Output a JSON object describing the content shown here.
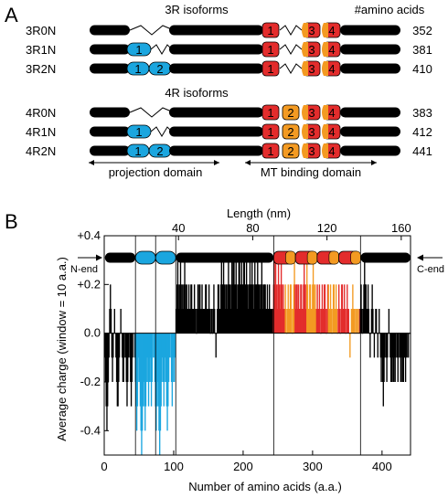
{
  "panel_a": {
    "label": "A",
    "header_3r": "3R isoforms",
    "header_4r": "4R isoforms",
    "aa_header": "#amino acids",
    "isoforms": [
      {
        "name": "3R0N",
        "aa": "352",
        "n_inserts": [
          "",
          ""
        ],
        "repeats": [
          "1",
          "",
          "3",
          "4"
        ]
      },
      {
        "name": "3R1N",
        "aa": "381",
        "n_inserts": [
          "1",
          ""
        ],
        "repeats": [
          "1",
          "",
          "3",
          "4"
        ]
      },
      {
        "name": "3R2N",
        "aa": "410",
        "n_inserts": [
          "1",
          "2"
        ],
        "repeats": [
          "1",
          "",
          "3",
          "4"
        ]
      },
      {
        "name": "4R0N",
        "aa": "383",
        "n_inserts": [
          "",
          ""
        ],
        "repeats": [
          "1",
          "2",
          "3",
          "4"
        ]
      },
      {
        "name": "4R1N",
        "aa": "412",
        "n_inserts": [
          "1",
          ""
        ],
        "repeats": [
          "1",
          "2",
          "3",
          "4"
        ]
      },
      {
        "name": "4R2N",
        "aa": "441",
        "n_inserts": [
          "1",
          "2"
        ],
        "repeats": [
          "1",
          "2",
          "3",
          "4"
        ]
      }
    ],
    "domain_projection": "projection domain",
    "domain_mt": "MT binding domain"
  },
  "panel_b": {
    "label": "B",
    "n_end": "N-end",
    "c_end": "C-end"
  },
  "colors": {
    "n_insert": "#1ba6df",
    "repeat_red": "#e32c2c",
    "repeat_orange": "#f39a22",
    "body": "#000000"
  },
  "chart_data": {
    "type": "bar",
    "xlabel": "Number of amino acids (a.a.)",
    "ylabel": "Average charge (window = 10 a.a.)",
    "x2label": "Length (nm)",
    "xlim": [
      0,
      441
    ],
    "ylim": [
      -0.5,
      0.4
    ],
    "xticks": [
      "0",
      "100",
      "200",
      "300",
      "400"
    ],
    "yticks": [
      "+0.4",
      "+0.2",
      "0.0",
      "-0.2",
      "-0.4"
    ],
    "x2ticks": [
      "40",
      "80",
      "120",
      "160"
    ],
    "domain_boundaries": [
      45,
      74,
      103,
      244,
      369
    ],
    "series": [
      {
        "range": [
          1,
          44
        ],
        "color": "#000000",
        "values": [
          -0.1,
          -0.2,
          -0.3,
          -0.4,
          -0.3,
          -0.2,
          -0.1,
          0.1,
          0.2,
          0.1,
          -0.1,
          -0.2,
          -0.1,
          0.0,
          0.1,
          0.0,
          -0.1,
          -0.2,
          -0.3,
          -0.3,
          -0.2,
          -0.1,
          0.0,
          0.1,
          0.0,
          -0.1,
          -0.2,
          -0.2,
          -0.1,
          0.0,
          -0.1,
          -0.2,
          -0.3,
          -0.2,
          -0.1,
          0.0,
          -0.1,
          -0.2,
          -0.3,
          -0.2,
          -0.1,
          0.0,
          0.0,
          -0.1
        ]
      },
      {
        "range": [
          45,
          103
        ],
        "color": "#1ba6df",
        "values": [
          -0.2,
          -0.3,
          -0.4,
          -0.3,
          -0.2,
          -0.1,
          -0.2,
          -0.3,
          -0.4,
          -0.5,
          -0.4,
          -0.3,
          -0.2,
          -0.3,
          -0.4,
          -0.3,
          -0.2,
          -0.1,
          -0.2,
          -0.3,
          -0.2,
          -0.1,
          -0.2,
          -0.3,
          -0.2,
          -0.1,
          0.0,
          -0.1,
          -0.2,
          -0.3,
          -0.4,
          -0.3,
          -0.2,
          -0.3,
          -0.4,
          -0.5,
          -0.4,
          -0.3,
          -0.2,
          -0.1,
          -0.2,
          -0.3,
          -0.2,
          -0.1,
          -0.2,
          -0.3,
          -0.4,
          -0.3,
          -0.2,
          -0.1,
          0.0,
          -0.1,
          -0.2,
          -0.3,
          -0.2,
          -0.1,
          -0.2,
          -0.1,
          0.0
        ]
      },
      {
        "range": [
          104,
          243
        ],
        "color": "#000000",
        "values": [
          0.1,
          0.2,
          0.3,
          0.2,
          0.1,
          0.2,
          0.3,
          0.2,
          0.1,
          0.2,
          0.1,
          0.2,
          0.3,
          0.2,
          0.1,
          0.2,
          0.1,
          0.1,
          0.2,
          0.1,
          0.1,
          0.2,
          0.2,
          0.1,
          0.1,
          0.1,
          0.2,
          0.1,
          0.1,
          0.0,
          0.1,
          0.2,
          0.1,
          0.2,
          0.2,
          0.1,
          0.1,
          0.2,
          0.1,
          0.1,
          0.1,
          0.1,
          0.2,
          0.2,
          0.1,
          0.1,
          0.1,
          0.2,
          0.1,
          0.0,
          0.1,
          0.1,
          0.0,
          0.1,
          0.2,
          0.1,
          0.0,
          -0.1,
          0.0,
          0.1,
          0.2,
          0.2,
          0.1,
          0.1,
          0.2,
          0.3,
          0.2,
          0.2,
          0.3,
          0.2,
          0.1,
          0.2,
          0.2,
          0.1,
          0.2,
          0.3,
          0.2,
          0.2,
          0.1,
          0.2,
          0.3,
          0.2,
          0.3,
          0.3,
          0.2,
          0.2,
          0.3,
          0.2,
          0.1,
          0.2,
          0.3,
          0.3,
          0.2,
          0.2,
          0.3,
          0.2,
          0.2,
          0.3,
          0.3,
          0.2,
          0.2,
          0.3,
          0.2,
          0.1,
          0.2,
          0.2,
          0.3,
          0.2,
          0.2,
          0.3,
          0.2,
          0.1,
          0.2,
          0.3,
          0.2,
          0.2,
          0.2,
          0.3,
          0.2,
          0.2,
          0.1,
          0.2,
          0.2,
          0.3,
          0.2,
          0.1,
          0.2,
          0.2,
          0.2,
          0.1,
          0.1,
          0.2,
          0.1,
          0.1,
          0.2,
          0.1,
          0.1,
          0.1,
          0.1,
          0.1
        ]
      },
      {
        "range": [
          244,
          368
        ],
        "color": "#e32c2c",
        "values": [
          0.2,
          0.3,
          0.2,
          0.3,
          0.2,
          0.1,
          0.2,
          0.3,
          0.2,
          0.1,
          0.2,
          0.3,
          0.2,
          0.1,
          0.2,
          0.1,
          0.1,
          0.2,
          0.1,
          0.0,
          0.1,
          0.2,
          0.1,
          0.1,
          0.2,
          0.2,
          0.1,
          0.0,
          0.1,
          0.2,
          0.3,
          0.2,
          0.1,
          0.2,
          0.2,
          0.1,
          0.2,
          0.1,
          0.1,
          0.2,
          0.2,
          0.1,
          0.1,
          0.2,
          0.3,
          0.2,
          0.1,
          0.2,
          0.3,
          0.2,
          0.1,
          0.1,
          0.2,
          0.2,
          0.1,
          0.1,
          0.2,
          0.3,
          0.2,
          0.1,
          0.2,
          0.1,
          0.1,
          0.2,
          0.1,
          0.1,
          0.2,
          0.1,
          0.0,
          0.1,
          0.2,
          0.1,
          0.1,
          0.2,
          0.2,
          0.1,
          0.0,
          0.1,
          0.2,
          0.2,
          0.1,
          0.1,
          0.2,
          0.1,
          0.0,
          0.1,
          0.2,
          0.2,
          0.1,
          0.1,
          0.2,
          0.1,
          0.0,
          0.1,
          0.2,
          0.1,
          0.0,
          0.1,
          0.2,
          0.2,
          0.1,
          0.1,
          0.2,
          0.1,
          0.0,
          0.1,
          0.2,
          0.1,
          0.1,
          0.0,
          -0.1,
          0.0,
          0.1,
          0.1,
          0.2,
          0.1,
          0.1,
          0.0,
          0.1,
          0.1,
          0.0,
          0.1,
          0.1,
          0.0,
          0.1
        ]
      },
      {
        "range": [
          369,
          441
        ],
        "color": "#000000",
        "values": [
          0.1,
          0.2,
          0.1,
          0.0,
          0.1,
          0.2,
          0.3,
          0.2,
          0.2,
          0.1,
          0.1,
          0.2,
          0.1,
          0.0,
          -0.1,
          0.0,
          0.1,
          0.2,
          0.1,
          0.0,
          -0.1,
          0.0,
          0.1,
          0.1,
          0.0,
          -0.1,
          0.0,
          0.1,
          0.0,
          -0.1,
          -0.2,
          -0.1,
          -0.2,
          -0.3,
          -0.2,
          -0.1,
          0.0,
          -0.1,
          -0.2,
          -0.1,
          0.0,
          0.1,
          0.0,
          -0.1,
          -0.2,
          -0.2,
          -0.1,
          -0.2,
          -0.2,
          -0.1,
          -0.2,
          -0.1,
          0.0,
          -0.1,
          -0.2,
          -0.1,
          0.0,
          -0.1,
          -0.2,
          -0.2,
          -0.1,
          -0.2,
          -0.2,
          -0.1,
          -0.1,
          -0.2,
          -0.1,
          0.0,
          -0.1,
          -0.1,
          0.0,
          0.0,
          0.0
        ]
      }
    ]
  }
}
